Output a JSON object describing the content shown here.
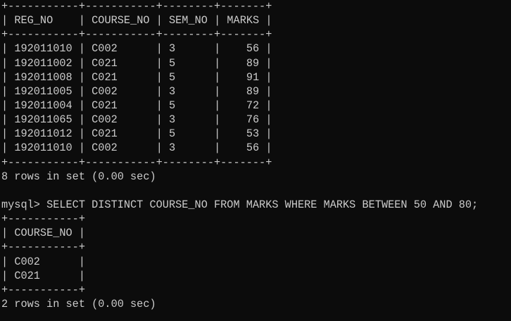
{
  "colors": {
    "background": "#0c0c0c",
    "text": "#cccccc"
  },
  "result1": {
    "columns": [
      {
        "label": "REG_NO",
        "width": 9,
        "align": "left"
      },
      {
        "label": "COURSE_NO",
        "width": 9,
        "align": "left"
      },
      {
        "label": "SEM_NO",
        "width": 6,
        "align": "left"
      },
      {
        "label": "MARKS",
        "width": 5,
        "align": "right"
      }
    ],
    "rows": [
      [
        "192011010",
        "C002",
        "3",
        "56"
      ],
      [
        "192011002",
        "C021",
        "5",
        "89"
      ],
      [
        "192011008",
        "C021",
        "5",
        "91"
      ],
      [
        "192011005",
        "C002",
        "3",
        "89"
      ],
      [
        "192011004",
        "C021",
        "5",
        "72"
      ],
      [
        "192011065",
        "C002",
        "3",
        "76"
      ],
      [
        "192011012",
        "C021",
        "5",
        "53"
      ],
      [
        "192011010",
        "C002",
        "3",
        "56"
      ]
    ],
    "status": "8 rows in set (0.00 sec)"
  },
  "prompt": "mysql> ",
  "command": "SELECT DISTINCT COURSE_NO FROM MARKS WHERE MARKS BETWEEN 50 AND 80;",
  "result2": {
    "columns": [
      {
        "label": "COURSE_NO",
        "width": 9,
        "align": "left"
      }
    ],
    "rows": [
      [
        "C002"
      ],
      [
        "C021"
      ]
    ],
    "status": "2 rows in set (0.00 sec)"
  }
}
